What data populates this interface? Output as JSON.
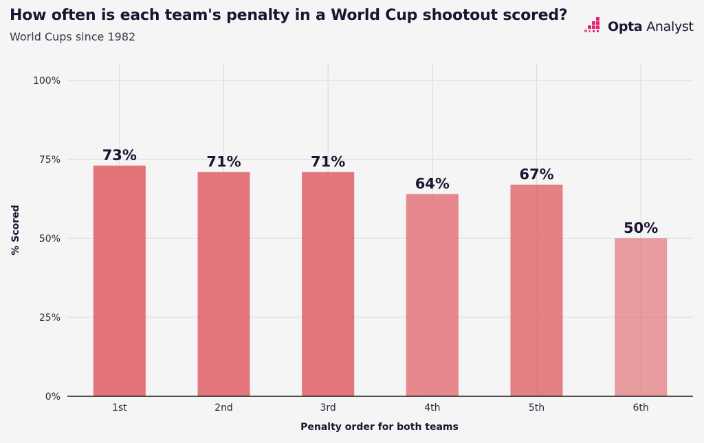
{
  "header": {
    "title": "How often is each team's penalty in a World Cup shootout scored?",
    "subtitle": "World Cups since 1982"
  },
  "brand": {
    "logo_bold": "Opta",
    "logo_light": "Analyst",
    "logo_icon": "opta-pixel-icon",
    "accent": "#e0256f"
  },
  "colors": {
    "background": "#f5f5f5",
    "bar": "#e06168",
    "grid": "#dddddd",
    "baseline": "#1a1a1a"
  },
  "chart_data": {
    "type": "bar",
    "categories": [
      "1st",
      "2nd",
      "3rd",
      "4th",
      "5th",
      "6th"
    ],
    "values": [
      73,
      71,
      71,
      64,
      67,
      50
    ],
    "value_labels": [
      "73%",
      "71%",
      "71%",
      "64%",
      "67%",
      "50%"
    ],
    "bar_opacity": [
      0.88,
      0.86,
      0.86,
      0.74,
      0.8,
      0.6
    ],
    "xlabel": "Penalty order for both teams",
    "ylabel": "% Scored",
    "ylim": [
      0,
      100
    ],
    "yticks": [
      0,
      25,
      50,
      75,
      100
    ],
    "ytick_labels": [
      "0%",
      "25%",
      "50%",
      "75%",
      "100%"
    ],
    "grid": true,
    "legend": false
  }
}
